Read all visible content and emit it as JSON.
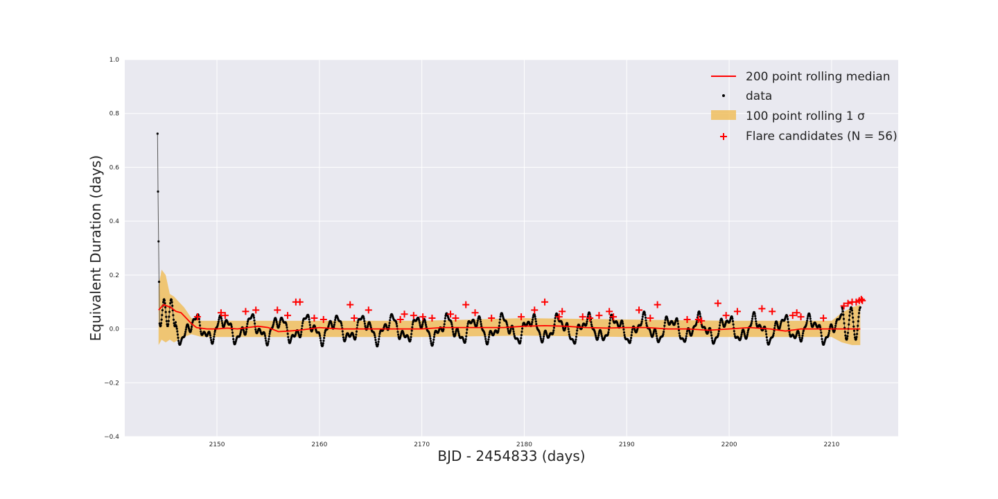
{
  "chart_data": {
    "type": "scatter",
    "title": "",
    "xlabel": "BJD - 2454833 (days)",
    "ylabel": "Equivalent Duration (days)",
    "xlim": [
      2141,
      2216.5
    ],
    "ylim": [
      -0.4,
      1.0
    ],
    "xticks": [
      2150,
      2160,
      2170,
      2180,
      2190,
      2200,
      2210
    ],
    "xtick_labels": [
      "2150",
      "2160",
      "2170",
      "2180",
      "2190",
      "2200",
      "2210"
    ],
    "yticks": [
      -0.4,
      -0.2,
      0.0,
      0.2,
      0.4,
      0.6,
      0.8,
      1.0
    ],
    "ytick_labels": [
      "−0.4",
      "−0.2",
      "0.0",
      "0.2",
      "0.4",
      "0.6",
      "0.8",
      "1.0"
    ],
    "grid": true,
    "legend_position": "top-right",
    "colors": {
      "plot_background": "#e9e9f0",
      "grid": "#ffffff",
      "data": "#000000",
      "median": "#ff0000",
      "band": "#f0b84a",
      "flare": "#ff0000"
    },
    "series": [
      {
        "name": "200 point rolling median",
        "kind": "line",
        "x": [
          2144.3,
          2144.8,
          2145.5,
          2146.0,
          2146.5,
          2147.0,
          2147.5,
          2148.0,
          2149.0,
          2150.0,
          2151.0,
          2152.0,
          2153.0,
          2154.0,
          2155.0,
          2156.0,
          2157.0,
          2158.0,
          2159.0,
          2160.0,
          2162.0,
          2164.0,
          2166.0,
          2168.0,
          2170.0,
          2172.0,
          2174.0,
          2176.0,
          2178.0,
          2180.0,
          2182.0,
          2184.0,
          2186.0,
          2188.0,
          2190.0,
          2192.0,
          2194.0,
          2196.0,
          2198.0,
          2200.0,
          2202.0,
          2204.0,
          2205.5,
          2207.0,
          2209.0,
          2211.0,
          2212.8
        ],
        "y": [
          0.07,
          0.09,
          0.08,
          0.065,
          0.06,
          0.04,
          0.02,
          0.005,
          0.0,
          0.0,
          0.003,
          0.0,
          0.005,
          0.01,
          0.005,
          -0.01,
          -0.008,
          -0.005,
          0.0,
          0.005,
          0.0,
          0.0,
          0.0,
          0.0,
          0.0,
          0.005,
          0.005,
          0.005,
          0.005,
          0.01,
          0.012,
          0.01,
          0.005,
          0.003,
          0.005,
          0.005,
          0.0,
          0.0,
          -0.005,
          0.0,
          0.005,
          0.0,
          -0.008,
          0.0,
          0.0,
          0.0,
          0.0
        ]
      },
      {
        "name": "data",
        "kind": "scatter",
        "x": [
          2144.2,
          2144.25,
          2144.3,
          2144.35,
          2144.4
        ],
        "y": [
          0.725,
          0.51,
          0.325,
          0.175,
          0.02
        ]
      },
      {
        "name": "100 point rolling 1 σ",
        "kind": "band",
        "x": [
          2144.3,
          2144.6,
          2145.0,
          2145.4,
          2145.8,
          2146.3,
          2146.8,
          2147.5,
          2148.5,
          2150.0,
          2155.0,
          2160.0,
          2170.0,
          2180.0,
          2190.0,
          2200.0,
          2205.0,
          2210.0,
          2211.0,
          2212.0,
          2212.8
        ],
        "lower": [
          -0.06,
          -0.04,
          -0.05,
          -0.04,
          -0.05,
          -0.04,
          -0.03,
          -0.02,
          -0.03,
          -0.03,
          -0.03,
          -0.03,
          -0.03,
          -0.025,
          -0.03,
          -0.03,
          -0.03,
          -0.03,
          -0.05,
          -0.06,
          -0.06
        ],
        "upper": [
          0.16,
          0.22,
          0.2,
          0.13,
          0.12,
          0.1,
          0.08,
          0.04,
          0.03,
          0.03,
          0.03,
          0.03,
          0.03,
          0.04,
          0.035,
          0.03,
          0.03,
          0.03,
          0.06,
          0.08,
          0.09
        ]
      },
      {
        "name": "Flare candidates (N = 56)",
        "kind": "marker",
        "x": [
          2148.1,
          2150.4,
          2150.8,
          2152.8,
          2153.8,
          2155.9,
          2156.9,
          2157.7,
          2158.1,
          2159.5,
          2160.4,
          2163.0,
          2163.4,
          2164.8,
          2167.9,
          2168.3,
          2169.2,
          2170.1,
          2171.0,
          2172.8,
          2173.3,
          2174.3,
          2175.2,
          2176.8,
          2179.7,
          2181.0,
          2182.0,
          2183.4,
          2183.7,
          2185.7,
          2186.4,
          2187.3,
          2188.3,
          2188.7,
          2191.2,
          2192.3,
          2193.0,
          2195.9,
          2197.0,
          2197.3,
          2198.9,
          2199.7,
          2200.8,
          2203.2,
          2204.2,
          2206.2,
          2206.6,
          2207.0,
          2209.2,
          2211.2,
          2211.6,
          2212.0,
          2212.4,
          2212.7,
          2212.9,
          2213.0
        ],
        "y": [
          0.045,
          0.06,
          0.05,
          0.065,
          0.07,
          0.07,
          0.05,
          0.1,
          0.1,
          0.04,
          0.035,
          0.09,
          0.04,
          0.07,
          0.035,
          0.055,
          0.05,
          0.045,
          0.04,
          0.055,
          0.04,
          0.09,
          0.06,
          0.04,
          0.045,
          0.07,
          0.1,
          0.045,
          0.065,
          0.045,
          0.04,
          0.05,
          0.065,
          0.045,
          0.07,
          0.04,
          0.09,
          0.035,
          0.035,
          0.03,
          0.095,
          0.05,
          0.065,
          0.075,
          0.065,
          0.05,
          0.06,
          0.045,
          0.04,
          0.085,
          0.095,
          0.1,
          0.1,
          0.105,
          0.11,
          0.105
        ]
      }
    ],
    "legend": [
      {
        "label": "200 point rolling median",
        "symbol": "line"
      },
      {
        "label": "data",
        "symbol": "dot"
      },
      {
        "label": "100 point rolling 1 σ",
        "symbol": "patch"
      },
      {
        "label": "Flare candidates (N = 56)",
        "symbol": "plus"
      }
    ]
  }
}
